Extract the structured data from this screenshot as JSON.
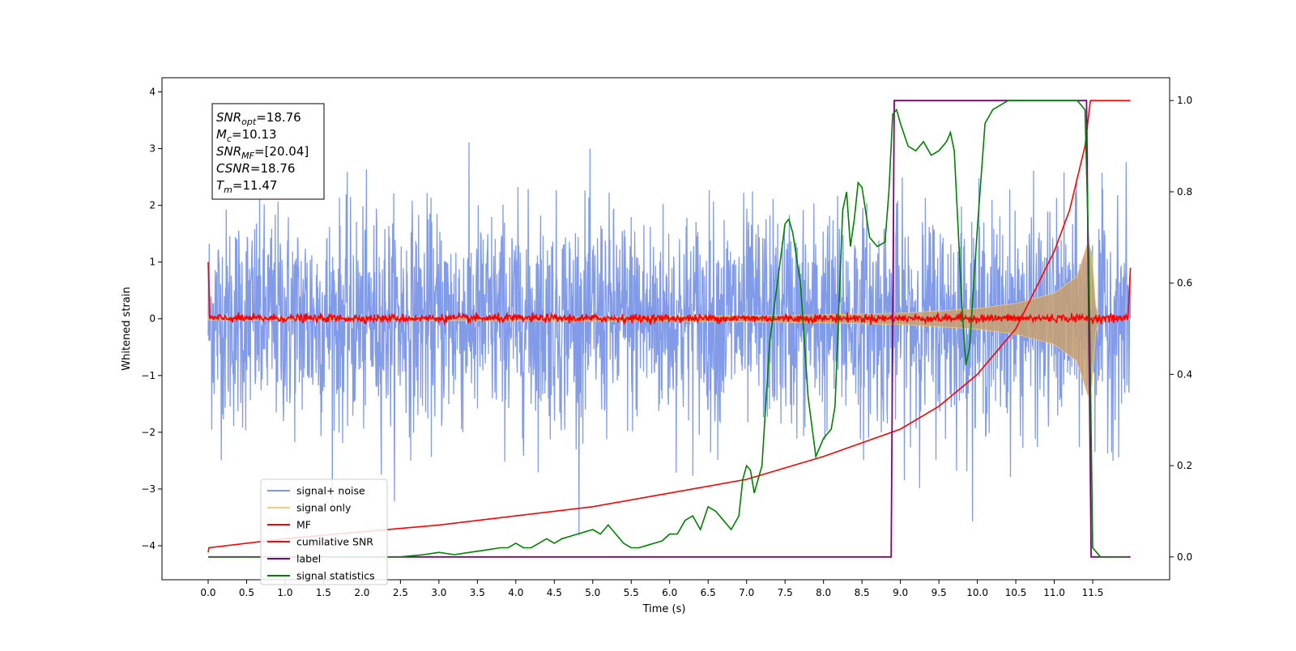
{
  "chart_data": {
    "type": "line",
    "title": "",
    "xlabel": "Time (s)",
    "ylabel_left": "Whitened strain",
    "ylabel_right": "",
    "xlim": [
      -0.6,
      12.5
    ],
    "ylim_left": [
      -4.6,
      4.25
    ],
    "ylim_right": [
      -0.05,
      1.05
    ],
    "xticks": [
      0.0,
      0.5,
      1.0,
      1.5,
      2.0,
      2.5,
      3.0,
      3.5,
      4.0,
      4.5,
      5.0,
      5.5,
      6.0,
      6.5,
      7.0,
      7.5,
      8.0,
      8.5,
      9.0,
      9.5,
      10.0,
      10.5,
      11.0,
      11.5
    ],
    "xtick_labels": [
      "0.0",
      "0.5",
      "1.0",
      "1.5",
      "2.0",
      "2.5",
      "3.0",
      "3.5",
      "4.0",
      "4.5",
      "5.0",
      "5.5",
      "6.0",
      "6.5",
      "7.0",
      "7.5",
      "8.0",
      "8.5",
      "9.0",
      "9.5",
      "10.0",
      "10.5",
      "11.0",
      "11.5"
    ],
    "yticks_left": [
      -4,
      -3,
      -2,
      -1,
      0,
      1,
      2,
      3,
      4
    ],
    "ytick_labels_left": [
      "−4",
      "−3",
      "−2",
      "−1",
      "0",
      "1",
      "2",
      "3",
      "4"
    ],
    "yticks_right": [
      0.0,
      0.2,
      0.4,
      0.6,
      0.8,
      1.0
    ],
    "ytick_labels_right": [
      "0.0",
      "0.2",
      "0.4",
      "0.6",
      "0.8",
      "1.0"
    ],
    "grid": false,
    "legend_position": "lower-left",
    "annotation": [
      {
        "sym": "SNR",
        "sub": "opt",
        "value": "=18.76"
      },
      {
        "sym": "M",
        "sub": "c",
        "value": "=10.13"
      },
      {
        "sym": "SNR",
        "sub": "MF",
        "value": "=[20.04]"
      },
      {
        "sym": "CSNR",
        "sub": "",
        "value": "=18.76"
      },
      {
        "sym": "T",
        "sub": "m",
        "value": "=11.47"
      }
    ],
    "series": [
      {
        "name": "signal+ noise",
        "color": "#7b96e8",
        "axis": "left",
        "description": "whitened noisy strain, roughly ±2.8 peaks, spikes up to about ±3.8",
        "x_range": [
          0.0,
          11.99
        ]
      },
      {
        "name": "signal only",
        "color": "#f5c87a",
        "axis": "left",
        "description": "chirp with amplitude growing toward merger",
        "x": [
          0.0,
          3.0,
          6.0,
          8.0,
          9.0,
          10.0,
          10.5,
          11.0,
          11.3,
          11.47,
          11.55,
          11.99
        ],
        "amplitude": [
          0.02,
          0.03,
          0.04,
          0.07,
          0.1,
          0.18,
          0.27,
          0.45,
          0.75,
          1.5,
          0.02,
          0.0
        ]
      },
      {
        "name": "MF",
        "color": "#ff0000",
        "axis": "left",
        "description": "matched filter output, near zero with small fluctuation, edge spikes",
        "x": [
          0.0,
          0.01,
          11.99
        ],
        "y": [
          1.0,
          0.0,
          0.9
        ]
      },
      {
        "name": "cumilative SNR",
        "color": "#ff0000",
        "axis": "right",
        "x": [
          0.0,
          0.01,
          1.0,
          2.0,
          3.0,
          4.0,
          5.0,
          6.0,
          7.0,
          8.0,
          8.5,
          9.0,
          9.5,
          10.0,
          10.5,
          11.0,
          11.2,
          11.4,
          11.47,
          11.55,
          11.99
        ],
        "y": [
          0.01,
          0.02,
          0.04,
          0.055,
          0.07,
          0.09,
          0.11,
          0.14,
          0.17,
          0.22,
          0.25,
          0.28,
          0.33,
          0.4,
          0.5,
          0.67,
          0.76,
          0.9,
          1.0,
          1.0,
          1.0
        ]
      },
      {
        "name": "label",
        "color": "#800080",
        "axis": "right",
        "x": [
          0.0,
          8.88,
          8.92,
          11.42,
          11.48,
          11.99
        ],
        "y": [
          0.0,
          0.0,
          1.0,
          1.0,
          0.0,
          0.0
        ]
      },
      {
        "name": "signal statistics",
        "color": "#008000",
        "axis": "right",
        "x": [
          0.0,
          2.5,
          2.8,
          3.0,
          3.2,
          3.4,
          3.6,
          3.8,
          3.9,
          4.0,
          4.1,
          4.2,
          4.3,
          4.4,
          4.5,
          4.6,
          4.7,
          4.8,
          4.9,
          5.0,
          5.1,
          5.2,
          5.3,
          5.4,
          5.5,
          5.6,
          5.7,
          5.8,
          5.9,
          6.0,
          6.1,
          6.2,
          6.3,
          6.4,
          6.5,
          6.6,
          6.7,
          6.8,
          6.9,
          6.95,
          7.0,
          7.05,
          7.1,
          7.2,
          7.3,
          7.4,
          7.5,
          7.55,
          7.6,
          7.7,
          7.8,
          7.9,
          8.0,
          8.1,
          8.15,
          8.2,
          8.25,
          8.3,
          8.35,
          8.4,
          8.45,
          8.5,
          8.6,
          8.7,
          8.8,
          8.85,
          8.9,
          8.95,
          9.0,
          9.1,
          9.2,
          9.3,
          9.4,
          9.5,
          9.6,
          9.65,
          9.7,
          9.8,
          9.85,
          9.9,
          10.0,
          10.1,
          10.2,
          10.3,
          10.4,
          10.5,
          11.0,
          11.3,
          11.4,
          11.45,
          11.5,
          11.55,
          11.6,
          11.95
        ],
        "y": [
          0.0,
          0.0,
          0.005,
          0.01,
          0.005,
          0.01,
          0.015,
          0.02,
          0.02,
          0.03,
          0.02,
          0.02,
          0.03,
          0.04,
          0.03,
          0.04,
          0.045,
          0.05,
          0.055,
          0.06,
          0.05,
          0.07,
          0.05,
          0.03,
          0.02,
          0.02,
          0.025,
          0.03,
          0.035,
          0.05,
          0.05,
          0.08,
          0.09,
          0.06,
          0.11,
          0.1,
          0.08,
          0.06,
          0.09,
          0.17,
          0.2,
          0.19,
          0.14,
          0.2,
          0.47,
          0.6,
          0.73,
          0.74,
          0.71,
          0.6,
          0.35,
          0.22,
          0.26,
          0.28,
          0.33,
          0.55,
          0.76,
          0.8,
          0.68,
          0.74,
          0.82,
          0.81,
          0.7,
          0.68,
          0.69,
          0.8,
          0.97,
          0.98,
          0.95,
          0.9,
          0.89,
          0.91,
          0.88,
          0.89,
          0.91,
          0.93,
          0.89,
          0.55,
          0.42,
          0.46,
          0.72,
          0.95,
          0.98,
          0.99,
          1.0,
          1.0,
          1.0,
          1.0,
          0.98,
          0.65,
          0.02,
          0.01,
          0.0,
          0.0
        ]
      }
    ]
  }
}
